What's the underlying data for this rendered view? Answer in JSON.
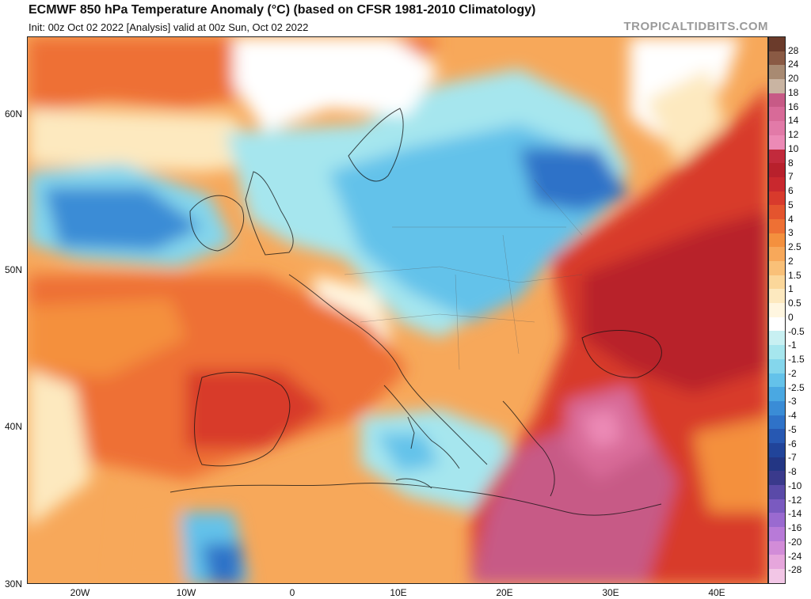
{
  "header": {
    "title": "ECMWF 850 hPa Temperature Anomaly (°C) (based on CFSR 1981-2010 Climatology)",
    "subtitle": "Init: 00z Oct 02 2022   [Analysis]   valid at 00z Sun, Oct 02 2022",
    "brand": "TROPICALTIDBITS.COM"
  },
  "map": {
    "lat_labels": [
      "60N",
      "50N",
      "40N",
      "30N"
    ],
    "lon_labels": [
      "20W",
      "10W",
      "0",
      "10E",
      "20E",
      "30E",
      "40E"
    ],
    "lat_range": [
      30,
      64.5
    ],
    "lon_range": [
      -25,
      45
    ]
  },
  "colorbar": {
    "labels": [
      "28",
      "24",
      "20",
      "18",
      "16",
      "14",
      "12",
      "10",
      "8",
      "7",
      "6",
      "5",
      "4",
      "3",
      "2.5",
      "2",
      "1.5",
      "1",
      "0.5",
      "0",
      "-0.5",
      "-1",
      "-1.5",
      "-2",
      "-2.5",
      "-3",
      "-4",
      "-5",
      "-6",
      "-7",
      "-8",
      "-10",
      "-12",
      "-14",
      "-16",
      "-20",
      "-24",
      "-28"
    ],
    "colors": [
      "#6b3b2b",
      "#8a5a44",
      "#a88a72",
      "#c9b4a2",
      "#c75a86",
      "#d86a98",
      "#e27aa8",
      "#ec8ab6",
      "#c22a3c",
      "#b8202c",
      "#c9282e",
      "#d83a2c",
      "#e4542e",
      "#ee7034",
      "#f4903e",
      "#f7a85a",
      "#f9c078",
      "#fbd79a",
      "#fde9bf",
      "#fff6e0",
      "#ffffff",
      "#c8f0f2",
      "#a6e6ee",
      "#84d6ec",
      "#64c2ea",
      "#4aa8e2",
      "#3a8cd6",
      "#2f72c8",
      "#2758b2",
      "#21449a",
      "#233684",
      "#3a3a8c",
      "#5a4aa8",
      "#7a5ac0",
      "#9a6ad0",
      "#b87ad8",
      "#d28cd8",
      "#e6a6dc",
      "#f2c6e6"
    ]
  }
}
